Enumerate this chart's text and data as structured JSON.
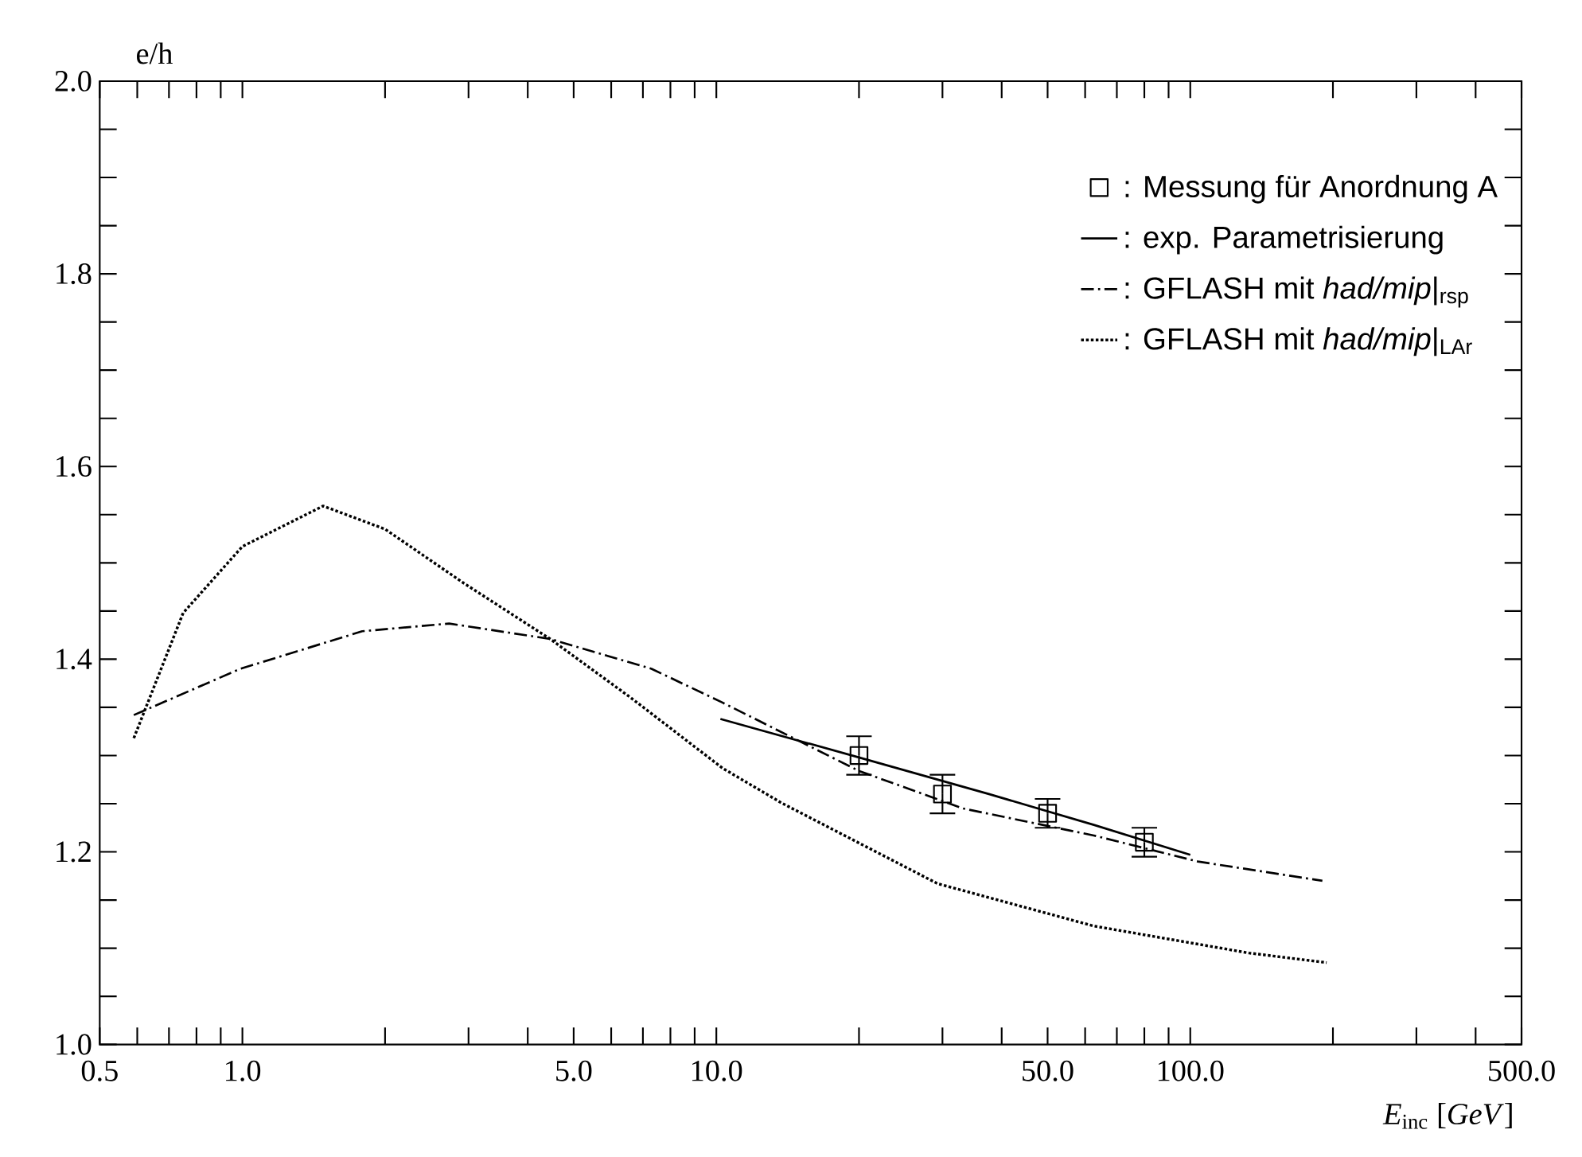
{
  "chart_data": {
    "type": "line",
    "xlabel": "*E*$_{inc}$ [*GeV*]",
    "ylabel": "e/h",
    "log": "x",
    "xlim": [
      0.5,
      500
    ],
    "ylim": [
      1.0,
      2.0
    ],
    "xticks": [
      {
        "value": 0.5,
        "label": "0.5"
      },
      {
        "value": 0.6,
        "label": null
      },
      {
        "value": 0.7,
        "label": null
      },
      {
        "value": 0.8,
        "label": null
      },
      {
        "value": 0.9,
        "label": null
      },
      {
        "value": 1,
        "label": "1.0"
      },
      {
        "value": 2,
        "label": null
      },
      {
        "value": 3,
        "label": null
      },
      {
        "value": 4,
        "label": null
      },
      {
        "value": 5,
        "label": "5.0"
      },
      {
        "value": 6,
        "label": null
      },
      {
        "value": 7,
        "label": null
      },
      {
        "value": 8,
        "label": null
      },
      {
        "value": 9,
        "label": null
      },
      {
        "value": 10,
        "label": "10.0"
      },
      {
        "value": 20,
        "label": null
      },
      {
        "value": 30,
        "label": null
      },
      {
        "value": 40,
        "label": null
      },
      {
        "value": 50,
        "label": "50.0"
      },
      {
        "value": 60,
        "label": null
      },
      {
        "value": 70,
        "label": null
      },
      {
        "value": 80,
        "label": null
      },
      {
        "value": 90,
        "label": null
      },
      {
        "value": 100,
        "label": "100.0"
      },
      {
        "value": 200,
        "label": null
      },
      {
        "value": 300,
        "label": null
      },
      {
        "value": 400,
        "label": null
      },
      {
        "value": 500,
        "label": "500.0"
      }
    ],
    "yticks": [
      {
        "value": 1.0,
        "label": "1.0"
      },
      {
        "value": 1.05,
        "label": null
      },
      {
        "value": 1.1,
        "label": null
      },
      {
        "value": 1.15,
        "label": null
      },
      {
        "value": 1.2,
        "label": "1.2"
      },
      {
        "value": 1.25,
        "label": null
      },
      {
        "value": 1.3,
        "label": null
      },
      {
        "value": 1.35,
        "label": null
      },
      {
        "value": 1.4,
        "label": "1.4"
      },
      {
        "value": 1.45,
        "label": null
      },
      {
        "value": 1.5,
        "label": null
      },
      {
        "value": 1.55,
        "label": null
      },
      {
        "value": 1.6,
        "label": "1.6"
      },
      {
        "value": 1.65,
        "label": null
      },
      {
        "value": 1.7,
        "label": null
      },
      {
        "value": 1.75,
        "label": null
      },
      {
        "value": 1.8,
        "label": "1.8"
      },
      {
        "value": 1.85,
        "label": null
      },
      {
        "value": 1.9,
        "label": null
      },
      {
        "value": 1.95,
        "label": null
      },
      {
        "value": 2.0,
        "label": "2.0"
      }
    ],
    "legend": "top right",
    "series": [
      {
        "name": ": Messung für Anordnung A",
        "type": "scatter",
        "marker": "square",
        "color": "#000000",
        "x": [
          20,
          30,
          50,
          80
        ],
        "values": [
          1.3,
          1.26,
          1.24,
          1.21
        ],
        "errors": [
          0.02,
          0.02,
          0.015,
          0.015
        ]
      },
      {
        "name": ": exp. Parametrisierung",
        "marker": "none",
        "line_style": "solid",
        "color": "#000000",
        "x": [
          10.2,
          20,
          37.6,
          62.6,
          100
        ],
        "values": [
          1.338,
          1.298,
          1.26,
          1.228,
          1.197
        ]
      },
      {
        "name": ": GFLASH mit *had/mip*|$_{rsp}$",
        "marker": "none",
        "line_style": "dashdotted",
        "color": "#000000",
        "x": [
          0.59,
          0.99,
          1.79,
          2.73,
          4.46,
          7.3,
          10.3,
          20,
          33.2,
          62.6,
          103.7,
          190
        ],
        "values": [
          1.342,
          1.39,
          1.429,
          1.437,
          1.421,
          1.39,
          1.355,
          1.284,
          1.245,
          1.217,
          1.19,
          1.17
        ]
      },
      {
        "name": ": GFLASH mit *had/mip*|$_{LAr}$",
        "marker": "none",
        "line_style": "dotted",
        "color": "#000000",
        "x": [
          0.59,
          0.75,
          1.0,
          1.48,
          2.0,
          2.93,
          4.46,
          6.6,
          10.3,
          13.7,
          29.3,
          62.6,
          133,
          194
        ],
        "values": [
          1.318,
          1.448,
          1.517,
          1.559,
          1.535,
          1.479,
          1.421,
          1.36,
          1.287,
          1.251,
          1.167,
          1.123,
          1.095,
          1.085
        ]
      }
    ]
  }
}
